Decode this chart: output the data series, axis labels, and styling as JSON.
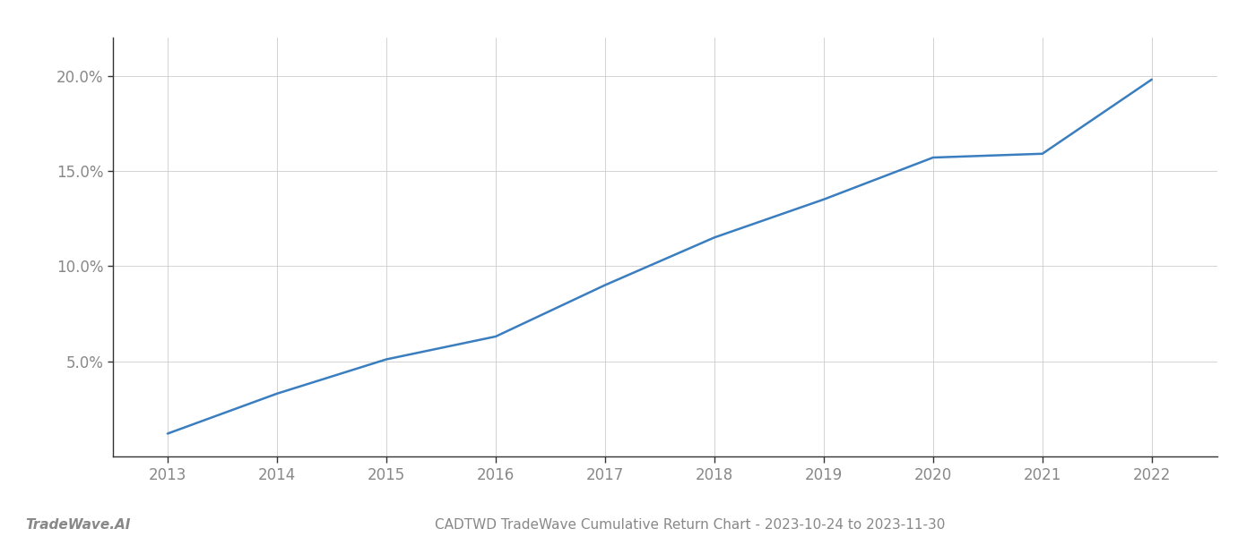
{
  "x_years": [
    2013,
    2014,
    2015,
    2016,
    2017,
    2018,
    2019,
    2020,
    2021,
    2022
  ],
  "y_values": [
    1.2,
    3.3,
    5.1,
    6.3,
    9.0,
    11.5,
    13.5,
    15.7,
    15.9,
    19.8
  ],
  "line_color": "#3a7ebf",
  "line_width": 1.8,
  "background_color": "#ffffff",
  "grid_color": "#cccccc",
  "ylim": [
    0,
    22
  ],
  "yticks": [
    5.0,
    10.0,
    15.0,
    20.0
  ],
  "ytick_labels": [
    "5.0%",
    "10.0%",
    "15.0%",
    "20.0%"
  ],
  "xticks": [
    2013,
    2014,
    2015,
    2016,
    2017,
    2018,
    2019,
    2020,
    2021,
    2022
  ],
  "tick_color": "#888888",
  "title": "CADTWD TradeWave Cumulative Return Chart - 2023-10-24 to 2023-11-30",
  "title_fontsize": 11,
  "watermark": "TradeWave.AI",
  "watermark_fontsize": 11,
  "tick_fontsize": 12,
  "spine_color": "#333333",
  "grid_linewidth": 0.6
}
